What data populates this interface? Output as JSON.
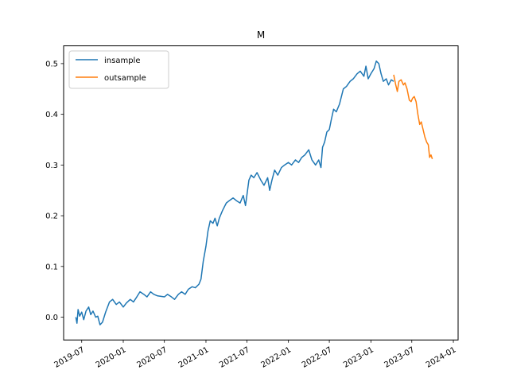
{
  "chart_data": {
    "type": "line",
    "title": "M",
    "xlabel": "",
    "ylabel": "",
    "x_ticks": [
      "2019-07",
      "2020-01",
      "2020-07",
      "2021-01",
      "2021-07",
      "2022-01",
      "2022-07",
      "2023-01",
      "2023-07",
      "2024-01"
    ],
    "y_ticks": [
      "0.0",
      "0.1",
      "0.2",
      "0.3",
      "0.4",
      "0.5"
    ],
    "xlim": [
      "2019-04-12",
      "2024-01-22"
    ],
    "ylim": [
      -0.045,
      0.535
    ],
    "grid": false,
    "legend_position": "upper-left",
    "series": [
      {
        "name": "insample",
        "color": "#1f77b4",
        "points": [
          [
            "2019-06-05",
            0.0
          ],
          [
            "2019-06-10",
            -0.012
          ],
          [
            "2019-06-15",
            0.015
          ],
          [
            "2019-06-22",
            0.002
          ],
          [
            "2019-07-01",
            0.01
          ],
          [
            "2019-07-10",
            -0.005
          ],
          [
            "2019-07-20",
            0.012
          ],
          [
            "2019-08-01",
            0.02
          ],
          [
            "2019-08-10",
            0.005
          ],
          [
            "2019-08-20",
            0.012
          ],
          [
            "2019-09-01",
            0.0
          ],
          [
            "2019-09-10",
            0.002
          ],
          [
            "2019-09-20",
            -0.015
          ],
          [
            "2019-10-01",
            -0.01
          ],
          [
            "2019-10-15",
            0.01
          ],
          [
            "2019-11-01",
            0.03
          ],
          [
            "2019-11-15",
            0.035
          ],
          [
            "2019-12-01",
            0.025
          ],
          [
            "2019-12-15",
            0.03
          ],
          [
            "2020-01-01",
            0.02
          ],
          [
            "2020-01-15",
            0.028
          ],
          [
            "2020-02-01",
            0.035
          ],
          [
            "2020-02-15",
            0.03
          ],
          [
            "2020-03-01",
            0.04
          ],
          [
            "2020-03-15",
            0.05
          ],
          [
            "2020-04-01",
            0.045
          ],
          [
            "2020-04-15",
            0.04
          ],
          [
            "2020-05-01",
            0.05
          ],
          [
            "2020-05-15",
            0.045
          ],
          [
            "2020-06-01",
            0.042
          ],
          [
            "2020-07-01",
            0.04
          ],
          [
            "2020-07-15",
            0.045
          ],
          [
            "2020-08-01",
            0.04
          ],
          [
            "2020-08-15",
            0.035
          ],
          [
            "2020-09-01",
            0.045
          ],
          [
            "2020-09-15",
            0.05
          ],
          [
            "2020-10-01",
            0.045
          ],
          [
            "2020-10-15",
            0.055
          ],
          [
            "2020-11-01",
            0.06
          ],
          [
            "2020-11-15",
            0.058
          ],
          [
            "2020-12-01",
            0.065
          ],
          [
            "2020-12-10",
            0.075
          ],
          [
            "2020-12-20",
            0.11
          ],
          [
            "2021-01-01",
            0.14
          ],
          [
            "2021-01-10",
            0.17
          ],
          [
            "2021-01-20",
            0.19
          ],
          [
            "2021-02-01",
            0.185
          ],
          [
            "2021-02-10",
            0.195
          ],
          [
            "2021-02-20",
            0.18
          ],
          [
            "2021-03-01",
            0.195
          ],
          [
            "2021-03-15",
            0.21
          ],
          [
            "2021-04-01",
            0.225
          ],
          [
            "2021-04-15",
            0.23
          ],
          [
            "2021-05-01",
            0.235
          ],
          [
            "2021-05-15",
            0.23
          ],
          [
            "2021-06-01",
            0.225
          ],
          [
            "2021-06-15",
            0.24
          ],
          [
            "2021-06-25",
            0.22
          ],
          [
            "2021-07-01",
            0.24
          ],
          [
            "2021-07-10",
            0.27
          ],
          [
            "2021-07-20",
            0.28
          ],
          [
            "2021-08-01",
            0.275
          ],
          [
            "2021-08-15",
            0.285
          ],
          [
            "2021-09-01",
            0.27
          ],
          [
            "2021-09-15",
            0.26
          ],
          [
            "2021-10-01",
            0.275
          ],
          [
            "2021-10-10",
            0.25
          ],
          [
            "2021-10-20",
            0.27
          ],
          [
            "2021-11-01",
            0.29
          ],
          [
            "2021-11-15",
            0.28
          ],
          [
            "2021-12-01",
            0.295
          ],
          [
            "2021-12-15",
            0.3
          ],
          [
            "2022-01-01",
            0.305
          ],
          [
            "2022-01-15",
            0.3
          ],
          [
            "2022-02-01",
            0.31
          ],
          [
            "2022-02-15",
            0.305
          ],
          [
            "2022-03-01",
            0.315
          ],
          [
            "2022-03-15",
            0.32
          ],
          [
            "2022-04-01",
            0.33
          ],
          [
            "2022-04-15",
            0.31
          ],
          [
            "2022-05-01",
            0.3
          ],
          [
            "2022-05-15",
            0.31
          ],
          [
            "2022-05-25",
            0.295
          ],
          [
            "2022-06-01",
            0.335
          ],
          [
            "2022-06-10",
            0.345
          ],
          [
            "2022-06-20",
            0.365
          ],
          [
            "2022-07-01",
            0.37
          ],
          [
            "2022-07-10",
            0.39
          ],
          [
            "2022-07-20",
            0.41
          ],
          [
            "2022-08-01",
            0.405
          ],
          [
            "2022-08-15",
            0.42
          ],
          [
            "2022-09-01",
            0.45
          ],
          [
            "2022-09-15",
            0.455
          ],
          [
            "2022-10-01",
            0.465
          ],
          [
            "2022-10-15",
            0.47
          ],
          [
            "2022-11-01",
            0.48
          ],
          [
            "2022-11-15",
            0.485
          ],
          [
            "2022-12-01",
            0.475
          ],
          [
            "2022-12-10",
            0.495
          ],
          [
            "2022-12-20",
            0.47
          ],
          [
            "2023-01-01",
            0.48
          ],
          [
            "2023-01-15",
            0.49
          ],
          [
            "2023-01-25",
            0.505
          ],
          [
            "2023-02-05",
            0.5
          ],
          [
            "2023-02-15",
            0.48
          ],
          [
            "2023-02-25",
            0.465
          ],
          [
            "2023-03-10",
            0.47
          ],
          [
            "2023-03-20",
            0.458
          ],
          [
            "2023-04-01",
            0.468
          ],
          [
            "2023-04-12",
            0.465
          ]
        ]
      },
      {
        "name": "outsample",
        "color": "#ff7f0e",
        "points": [
          [
            "2023-04-12",
            0.478
          ],
          [
            "2023-04-20",
            0.46
          ],
          [
            "2023-04-28",
            0.445
          ],
          [
            "2023-05-05",
            0.465
          ],
          [
            "2023-05-15",
            0.468
          ],
          [
            "2023-05-25",
            0.458
          ],
          [
            "2023-06-01",
            0.462
          ],
          [
            "2023-06-10",
            0.45
          ],
          [
            "2023-06-20",
            0.428
          ],
          [
            "2023-06-28",
            0.425
          ],
          [
            "2023-07-05",
            0.432
          ],
          [
            "2023-07-12",
            0.435
          ],
          [
            "2023-07-20",
            0.425
          ],
          [
            "2023-07-28",
            0.4
          ],
          [
            "2023-08-05",
            0.38
          ],
          [
            "2023-08-12",
            0.385
          ],
          [
            "2023-08-20",
            0.37
          ],
          [
            "2023-08-28",
            0.355
          ],
          [
            "2023-09-05",
            0.345
          ],
          [
            "2023-09-12",
            0.34
          ],
          [
            "2023-09-18",
            0.315
          ],
          [
            "2023-09-24",
            0.32
          ],
          [
            "2023-09-30",
            0.312
          ]
        ]
      }
    ]
  }
}
